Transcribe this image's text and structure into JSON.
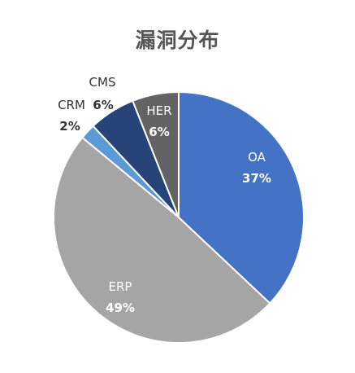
{
  "chart_data": {
    "type": "pie",
    "title": "漏洞分布",
    "slices": [
      {
        "label": "OA",
        "value": 37,
        "value_label": "37%",
        "color": "#4472c4",
        "label_color": "#ffffff"
      },
      {
        "label": "ERP",
        "value": 49,
        "value_label": "49%",
        "color": "#a5a5a5",
        "label_color": "#ffffff"
      },
      {
        "label": "CRM",
        "value": 2,
        "value_label": "2%",
        "color": "#5b9bd5",
        "label_color": "#333333"
      },
      {
        "label": "CMS",
        "value": 6,
        "value_label": "6%",
        "color": "#264478",
        "label_color": "#333333"
      },
      {
        "label": "HER",
        "value": 6,
        "value_label": "6%",
        "color": "#636363",
        "label_color": "#ffffff"
      }
    ],
    "start_angle": "12 o'clock",
    "direction": "clockwise",
    "legend": "none"
  }
}
